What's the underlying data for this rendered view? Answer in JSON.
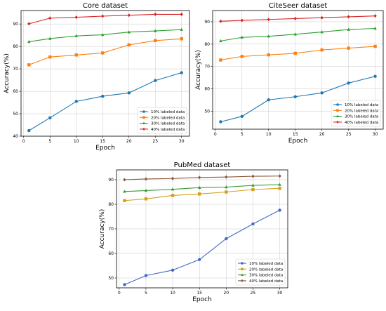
{
  "chart_data": [
    {
      "type": "line",
      "title": "Core dataset",
      "xlabel": "Epoch",
      "ylabel": "Accuracy(%)",
      "x": [
        1,
        5,
        10,
        15,
        20,
        25,
        30
      ],
      "xticks": [
        0,
        5,
        10,
        15,
        20,
        25,
        30
      ],
      "yticks": [
        40,
        50,
        60,
        70,
        80,
        90
      ],
      "xlim": [
        -0.5,
        31.5
      ],
      "ylim": [
        40,
        96
      ],
      "grid": true,
      "legend_position": "lower-right",
      "series": [
        {
          "name": "10% labeled data",
          "marker": "circle",
          "color": "#1f77b4",
          "values": [
            42.5,
            48.2,
            55.5,
            57.8,
            59.3,
            64.8,
            68.3
          ]
        },
        {
          "name": "20% labeled data",
          "marker": "square",
          "color": "#ff7f0e",
          "values": [
            71.8,
            75.3,
            76.2,
            77.1,
            80.7,
            82.6,
            83.4
          ]
        },
        {
          "name": "30% labeled data",
          "marker": "triangle",
          "color": "#2ca02c",
          "values": [
            82.1,
            83.5,
            84.7,
            85.2,
            86.4,
            86.9,
            87.5
          ]
        },
        {
          "name": "40% labeled data",
          "marker": "diamond",
          "color": "#d62728",
          "values": [
            90.1,
            92.6,
            93.0,
            93.5,
            93.9,
            94.3,
            94.3
          ]
        }
      ]
    },
    {
      "type": "line",
      "title": "CiteSeer dataset",
      "xlabel": "Epoch",
      "ylabel": "Accuracy(%)",
      "x": [
        1,
        5,
        10,
        15,
        20,
        25,
        30
      ],
      "xticks": [
        0,
        5,
        10,
        15,
        20,
        25,
        30
      ],
      "yticks": [
        50,
        60,
        70,
        80,
        90
      ],
      "xlim": [
        -0.5,
        31.5
      ],
      "ylim": [
        42,
        95
      ],
      "grid": true,
      "legend_position": "lower-right",
      "series": [
        {
          "name": "10% labeled data",
          "marker": "circle",
          "color": "#1f77b4",
          "values": [
            45.3,
            47.7,
            55.1,
            56.5,
            58.2,
            62.6,
            65.6
          ]
        },
        {
          "name": "20% labeled data",
          "marker": "square",
          "color": "#ff7f0e",
          "values": [
            72.9,
            74.5,
            75.2,
            75.9,
            77.4,
            78.2,
            79.0
          ]
        },
        {
          "name": "30% labeled data",
          "marker": "triangle",
          "color": "#2ca02c",
          "values": [
            81.4,
            83.0,
            83.5,
            84.4,
            85.4,
            86.5,
            87.0
          ]
        },
        {
          "name": "40% labeled data",
          "marker": "diamond",
          "color": "#d62728",
          "values": [
            90.2,
            90.6,
            91.0,
            91.4,
            91.8,
            92.2,
            92.6
          ]
        }
      ]
    },
    {
      "type": "line",
      "title": "PubMed dataset",
      "xlabel": "Epoch",
      "ylabel": "Accuracy(%)",
      "x": [
        1,
        5,
        10,
        15,
        20,
        25,
        30
      ],
      "xticks": [
        0,
        5,
        10,
        15,
        20,
        25,
        30
      ],
      "yticks": [
        50,
        60,
        70,
        80,
        90
      ],
      "xlim": [
        -0.5,
        31.5
      ],
      "ylim": [
        46,
        94
      ],
      "grid": true,
      "legend_position": "lower-right",
      "series": [
        {
          "name": "10% labeled data",
          "marker": "circle",
          "color": "#4169c4",
          "values": [
            47.3,
            51.0,
            53.2,
            57.5,
            66.0,
            72.0,
            77.6
          ]
        },
        {
          "name": "20% labeled data",
          "marker": "square",
          "color": "#d4a017",
          "values": [
            81.5,
            82.2,
            83.6,
            84.2,
            85.0,
            86.0,
            86.5
          ]
        },
        {
          "name": "30% labeled data",
          "marker": "triangle",
          "color": "#3a9a3a",
          "values": [
            85.2,
            85.6,
            86.1,
            86.8,
            87.0,
            87.7,
            88.0
          ]
        },
        {
          "name": "40% labeled data",
          "marker": "diamond",
          "color": "#8b5a3c",
          "values": [
            90.0,
            90.3,
            90.5,
            90.9,
            91.1,
            91.4,
            91.5
          ]
        }
      ]
    }
  ]
}
